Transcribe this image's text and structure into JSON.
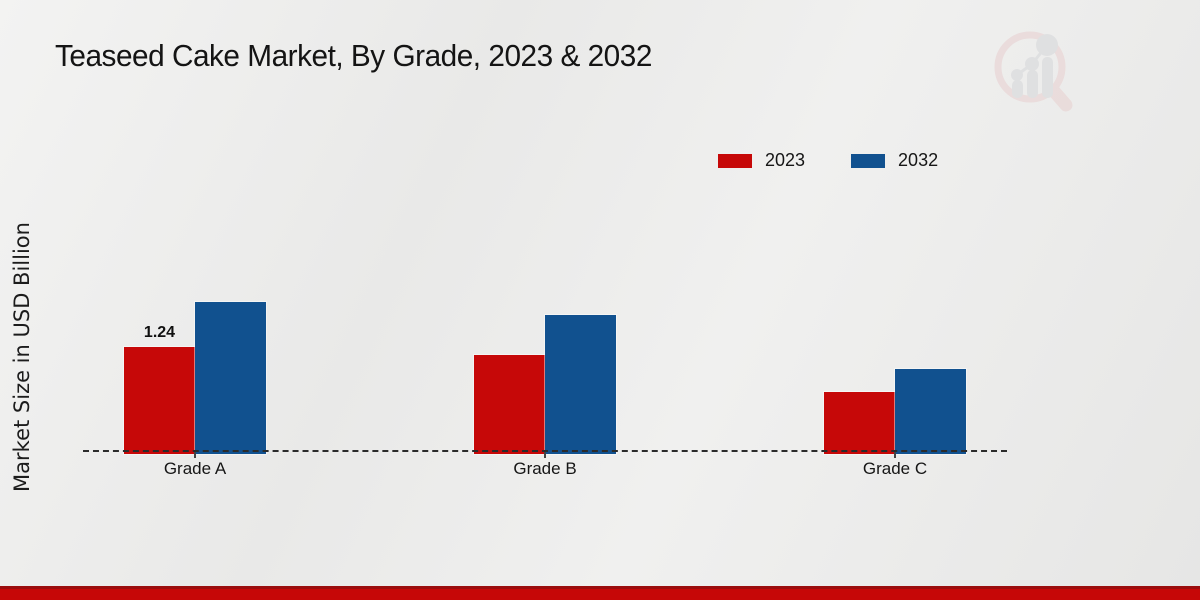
{
  "page": {
    "title": "Teaseed Cake Market, By Grade, 2023 & 2032",
    "y_axis_label": "Market Size in USD Billion"
  },
  "legend": {
    "items": [
      {
        "label": "2023",
        "color": "#c60808"
      },
      {
        "label": "2032",
        "color": "#11518f"
      }
    ]
  },
  "chart_data": {
    "type": "bar",
    "title": "Teaseed Cake Market, By Grade, 2023 & 2032",
    "xlabel": "",
    "ylabel": "Market Size in USD Billion",
    "categories": [
      "Grade A",
      "Grade B",
      "Grade C"
    ],
    "series": [
      {
        "name": "2023",
        "color": "#c60808",
        "values": [
          1.24,
          1.15,
          0.72
        ],
        "data_labels": [
          "1.24",
          null,
          null
        ]
      },
      {
        "name": "2032",
        "color": "#11518f",
        "values": [
          1.77,
          1.62,
          0.99
        ],
        "data_labels": [
          null,
          null,
          null
        ]
      }
    ],
    "ylim": [
      0,
      2.2
    ],
    "grid": false,
    "legend_position": "top-right",
    "axis_baseline": "dashed",
    "only_labeled_bar": "Grade A 2023"
  },
  "branding": {
    "logo_icon": "magnifier-bar-chart-watermark"
  },
  "colors": {
    "series_2023": "#c60808",
    "series_2032": "#11518f",
    "baseline": "#2b2b2b",
    "footer_band": "#c60707",
    "footer_band_top": "#9b0d0d",
    "background": "#ececeb"
  }
}
